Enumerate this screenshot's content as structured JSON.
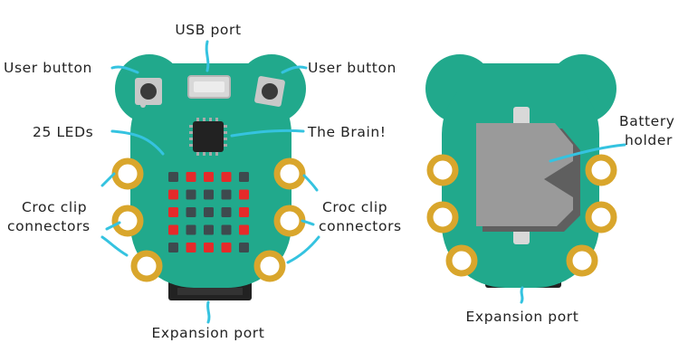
{
  "labels": {
    "usb_port": "USB port",
    "user_button_left": "User button",
    "user_button_right": "User button",
    "leds": "25 LEDs",
    "brain": "The Brain!",
    "croc_left_1": "Croc clip",
    "croc_left_2": "connectors",
    "croc_right_1": "Croc clip",
    "croc_right_2": "connectors",
    "expansion_front": "Expansion port",
    "battery_1": "Battery",
    "battery_2": "holder",
    "expansion_back": "Expansion port"
  },
  "led_grid": [
    [
      0,
      1,
      1,
      1,
      0
    ],
    [
      1,
      0,
      0,
      0,
      1
    ],
    [
      1,
      0,
      0,
      0,
      1
    ],
    [
      1,
      0,
      0,
      0,
      1
    ],
    [
      0,
      1,
      1,
      1,
      0
    ]
  ],
  "colors": {
    "board": "#21a98c",
    "board_edge": "#1a8f76",
    "pad_outer": "#d9a62c",
    "pad_inner": "#ffffff",
    "led_on": "#e52a2a",
    "led_off": "#3e4a4e",
    "leader_line": "#35c3e0",
    "battery_holder": "#9a9a9a",
    "battery_shadow": "#5f5f5f",
    "connector": "#222222",
    "text": "#222222"
  }
}
